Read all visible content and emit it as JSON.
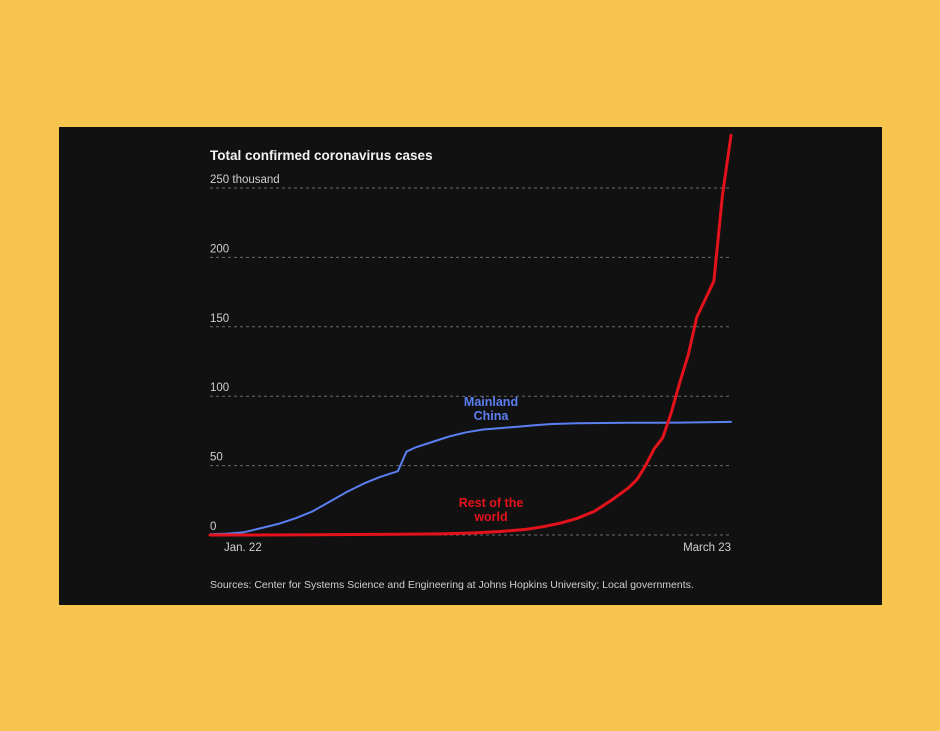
{
  "colors": {
    "background": "#f7c54e",
    "panel": "#111112",
    "china": "#5b7ff0",
    "rest": "#e3121b",
    "grid": "#6a6a6a",
    "text": "#f2f2f2",
    "muted": "#cfcfcf"
  },
  "chart_data": {
    "type": "line",
    "title": "Total confirmed coronavirus cases",
    "ytick_labels": [
      "250 thousand",
      "200",
      "150",
      "100",
      "50",
      "0"
    ],
    "yticks": [
      250,
      200,
      150,
      100,
      50,
      0
    ],
    "xtick_labels": [
      "Jan. 22",
      "March 23"
    ],
    "ylim": [
      0,
      250
    ],
    "x_domain": [
      "2020-01-22",
      "2020-03-23"
    ],
    "grid": true,
    "source": "Sources: Center for Systems Science and Engineering at Johns Hopkins University; Local governments.",
    "series": [
      {
        "name": "Mainland China",
        "label_lines": [
          "Mainland",
          "China"
        ],
        "color": "#5b7ff0",
        "points": [
          [
            "2020-01-22",
            0.5
          ],
          [
            "2020-01-24",
            1
          ],
          [
            "2020-01-26",
            2
          ],
          [
            "2020-01-28",
            5
          ],
          [
            "2020-01-30",
            8
          ],
          [
            "2020-02-01",
            12
          ],
          [
            "2020-02-03",
            17
          ],
          [
            "2020-02-05",
            24
          ],
          [
            "2020-02-07",
            31
          ],
          [
            "2020-02-09",
            37
          ],
          [
            "2020-02-11",
            42
          ],
          [
            "2020-02-13",
            46
          ],
          [
            "2020-02-14",
            60
          ],
          [
            "2020-02-15",
            63
          ],
          [
            "2020-02-17",
            67
          ],
          [
            "2020-02-19",
            71
          ],
          [
            "2020-02-21",
            74
          ],
          [
            "2020-02-23",
            76
          ],
          [
            "2020-02-25",
            77
          ],
          [
            "2020-02-27",
            78
          ],
          [
            "2020-02-29",
            79
          ],
          [
            "2020-03-02",
            80
          ],
          [
            "2020-03-05",
            80.5
          ],
          [
            "2020-03-08",
            80.7
          ],
          [
            "2020-03-11",
            80.8
          ],
          [
            "2020-03-14",
            80.9
          ],
          [
            "2020-03-17",
            81
          ],
          [
            "2020-03-20",
            81.2
          ],
          [
            "2020-03-23",
            81.5
          ]
        ]
      },
      {
        "name": "Rest of the world",
        "label_lines": [
          "Rest of the",
          "world"
        ],
        "color": "#e3121b",
        "points": [
          [
            "2020-01-22",
            0
          ],
          [
            "2020-02-01",
            0.1
          ],
          [
            "2020-02-10",
            0.4
          ],
          [
            "2020-02-18",
            0.8
          ],
          [
            "2020-02-22",
            1.5
          ],
          [
            "2020-02-25",
            2.5
          ],
          [
            "2020-02-28",
            4
          ],
          [
            "2020-03-01",
            6
          ],
          [
            "2020-03-03",
            8.5
          ],
          [
            "2020-03-05",
            12
          ],
          [
            "2020-03-07",
            17
          ],
          [
            "2020-03-09",
            25
          ],
          [
            "2020-03-11",
            34
          ],
          [
            "2020-03-12",
            40
          ],
          [
            "2020-03-13",
            50
          ],
          [
            "2020-03-14",
            62
          ],
          [
            "2020-03-15",
            70
          ],
          [
            "2020-03-16",
            88
          ],
          [
            "2020-03-17",
            110
          ],
          [
            "2020-03-18",
            130
          ],
          [
            "2020-03-19",
            157
          ],
          [
            "2020-03-20",
            170
          ],
          [
            "2020-03-21",
            183
          ],
          [
            "2020-03-22",
            245
          ],
          [
            "2020-03-23",
            288
          ]
        ]
      }
    ]
  }
}
